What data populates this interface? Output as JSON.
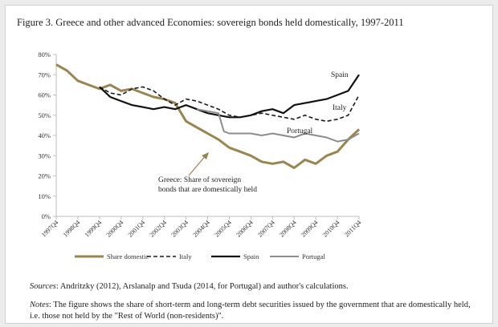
{
  "figure_title": "Figure 3. Greece and other advanced Economies: sovereign bonds held domestically, 1997-2011",
  "sources_label": "Sources",
  "sources_text": ": Andritzky (2012), Arslanalp and Tsuda (2014, for Portugal) and author's calculations.",
  "notes_label": "Notes",
  "notes_text": ": The figure shows the share of short-term and long-term debt securities issued by the government that are domestically held, i.e. those not held by the \"Rest of World (non-residents)\".",
  "colors": {
    "greece": "#9a8550",
    "italy": "#1a1a1a",
    "spain": "#111111",
    "portugal": "#8c8c8c",
    "axis": "#bdbdbd"
  },
  "chart_data": {
    "type": "line",
    "title": "",
    "xlabel": "",
    "ylabel": "",
    "ylim": [
      0,
      80
    ],
    "yticks": [
      "0%",
      "10%",
      "20%",
      "30%",
      "40%",
      "50%",
      "60%",
      "70%",
      "80%"
    ],
    "xticks": [
      "1997Q4",
      "1998Q4",
      "1999Q4",
      "2000Q4",
      "2001Q4",
      "2002Q4",
      "2003Q4",
      "2004Q4",
      "2005Q4",
      "2006Q4",
      "2007Q4",
      "2008Q4",
      "2009Q4",
      "2010Q4",
      "2011Q4"
    ],
    "grid": false,
    "legend_position": "bottom",
    "annotations": {
      "spain": "Spain",
      "italy": "Italy",
      "portugal": "Portugal",
      "greece_line1": "Greece:  Share of sovereign",
      "greece_line2": "bonds that are domestically held"
    },
    "series": [
      {
        "name": "Share domestic",
        "key": "greece",
        "style": "thick",
        "x": [
          1997.75,
          1998.25,
          1998.75,
          1999.25,
          1999.75,
          2000.25,
          2000.75,
          2001.25,
          2001.75,
          2002.25,
          2002.75,
          2003.25,
          2003.75,
          2004.25,
          2004.75,
          2005.25,
          2005.75,
          2006.25,
          2006.75,
          2007.25,
          2007.75,
          2008.25,
          2008.75,
          2009.25,
          2009.75,
          2010.25,
          2010.75,
          2011.25,
          2011.75
        ],
        "y": [
          75,
          72,
          67,
          65,
          63,
          65,
          62,
          63,
          61,
          59,
          58,
          56,
          47,
          44,
          41,
          38,
          34,
          32,
          30,
          27,
          26,
          27,
          24,
          28,
          26,
          30,
          32,
          38,
          43
        ]
      },
      {
        "name": "Italy",
        "key": "italy",
        "style": "dashed",
        "x": [
          1999.75,
          2000.25,
          2000.75,
          2001.25,
          2001.75,
          2002.25,
          2002.75,
          2003.25,
          2003.75,
          2004.25,
          2004.75,
          2005.25,
          2005.75,
          2006.25,
          2006.75,
          2007.25,
          2007.75,
          2008.25,
          2008.75,
          2009.25,
          2009.75,
          2010.25,
          2010.75,
          2011.25,
          2011.75
        ],
        "y": [
          64,
          61,
          60,
          63,
          64,
          62,
          58,
          55,
          58,
          57,
          55,
          53,
          50,
          49,
          50,
          51,
          50,
          49,
          48,
          50,
          48,
          47,
          48,
          50,
          60
        ]
      },
      {
        "name": "Spain",
        "key": "spain",
        "style": "solid",
        "x": [
          1999.75,
          2000.25,
          2000.75,
          2001.25,
          2001.75,
          2002.25,
          2002.75,
          2003.25,
          2003.75,
          2004.25,
          2004.75,
          2005.25,
          2005.75,
          2006.25,
          2006.75,
          2007.25,
          2007.75,
          2008.25,
          2008.75,
          2009.25,
          2009.75,
          2010.25,
          2010.75,
          2011.25,
          2011.75
        ],
        "y": [
          64,
          59,
          57,
          55,
          54,
          53,
          54,
          53,
          55,
          53,
          51,
          50,
          49,
          49,
          50,
          52,
          53,
          51,
          55,
          56,
          57,
          58,
          60,
          62,
          70
        ]
      },
      {
        "name": "Portugal",
        "key": "portugal",
        "style": "solid",
        "x": [
          2004.25,
          2004.75,
          2005.25,
          2005.5,
          2005.75,
          2006.25,
          2006.75,
          2007.25,
          2007.75,
          2008.25,
          2008.75,
          2009.25,
          2009.75,
          2010.25,
          2010.75,
          2011.25,
          2011.75
        ],
        "y": [
          53,
          52,
          51,
          42,
          41,
          41,
          41,
          40,
          41,
          40,
          39,
          41,
          40,
          39,
          37,
          38,
          41
        ]
      }
    ]
  }
}
